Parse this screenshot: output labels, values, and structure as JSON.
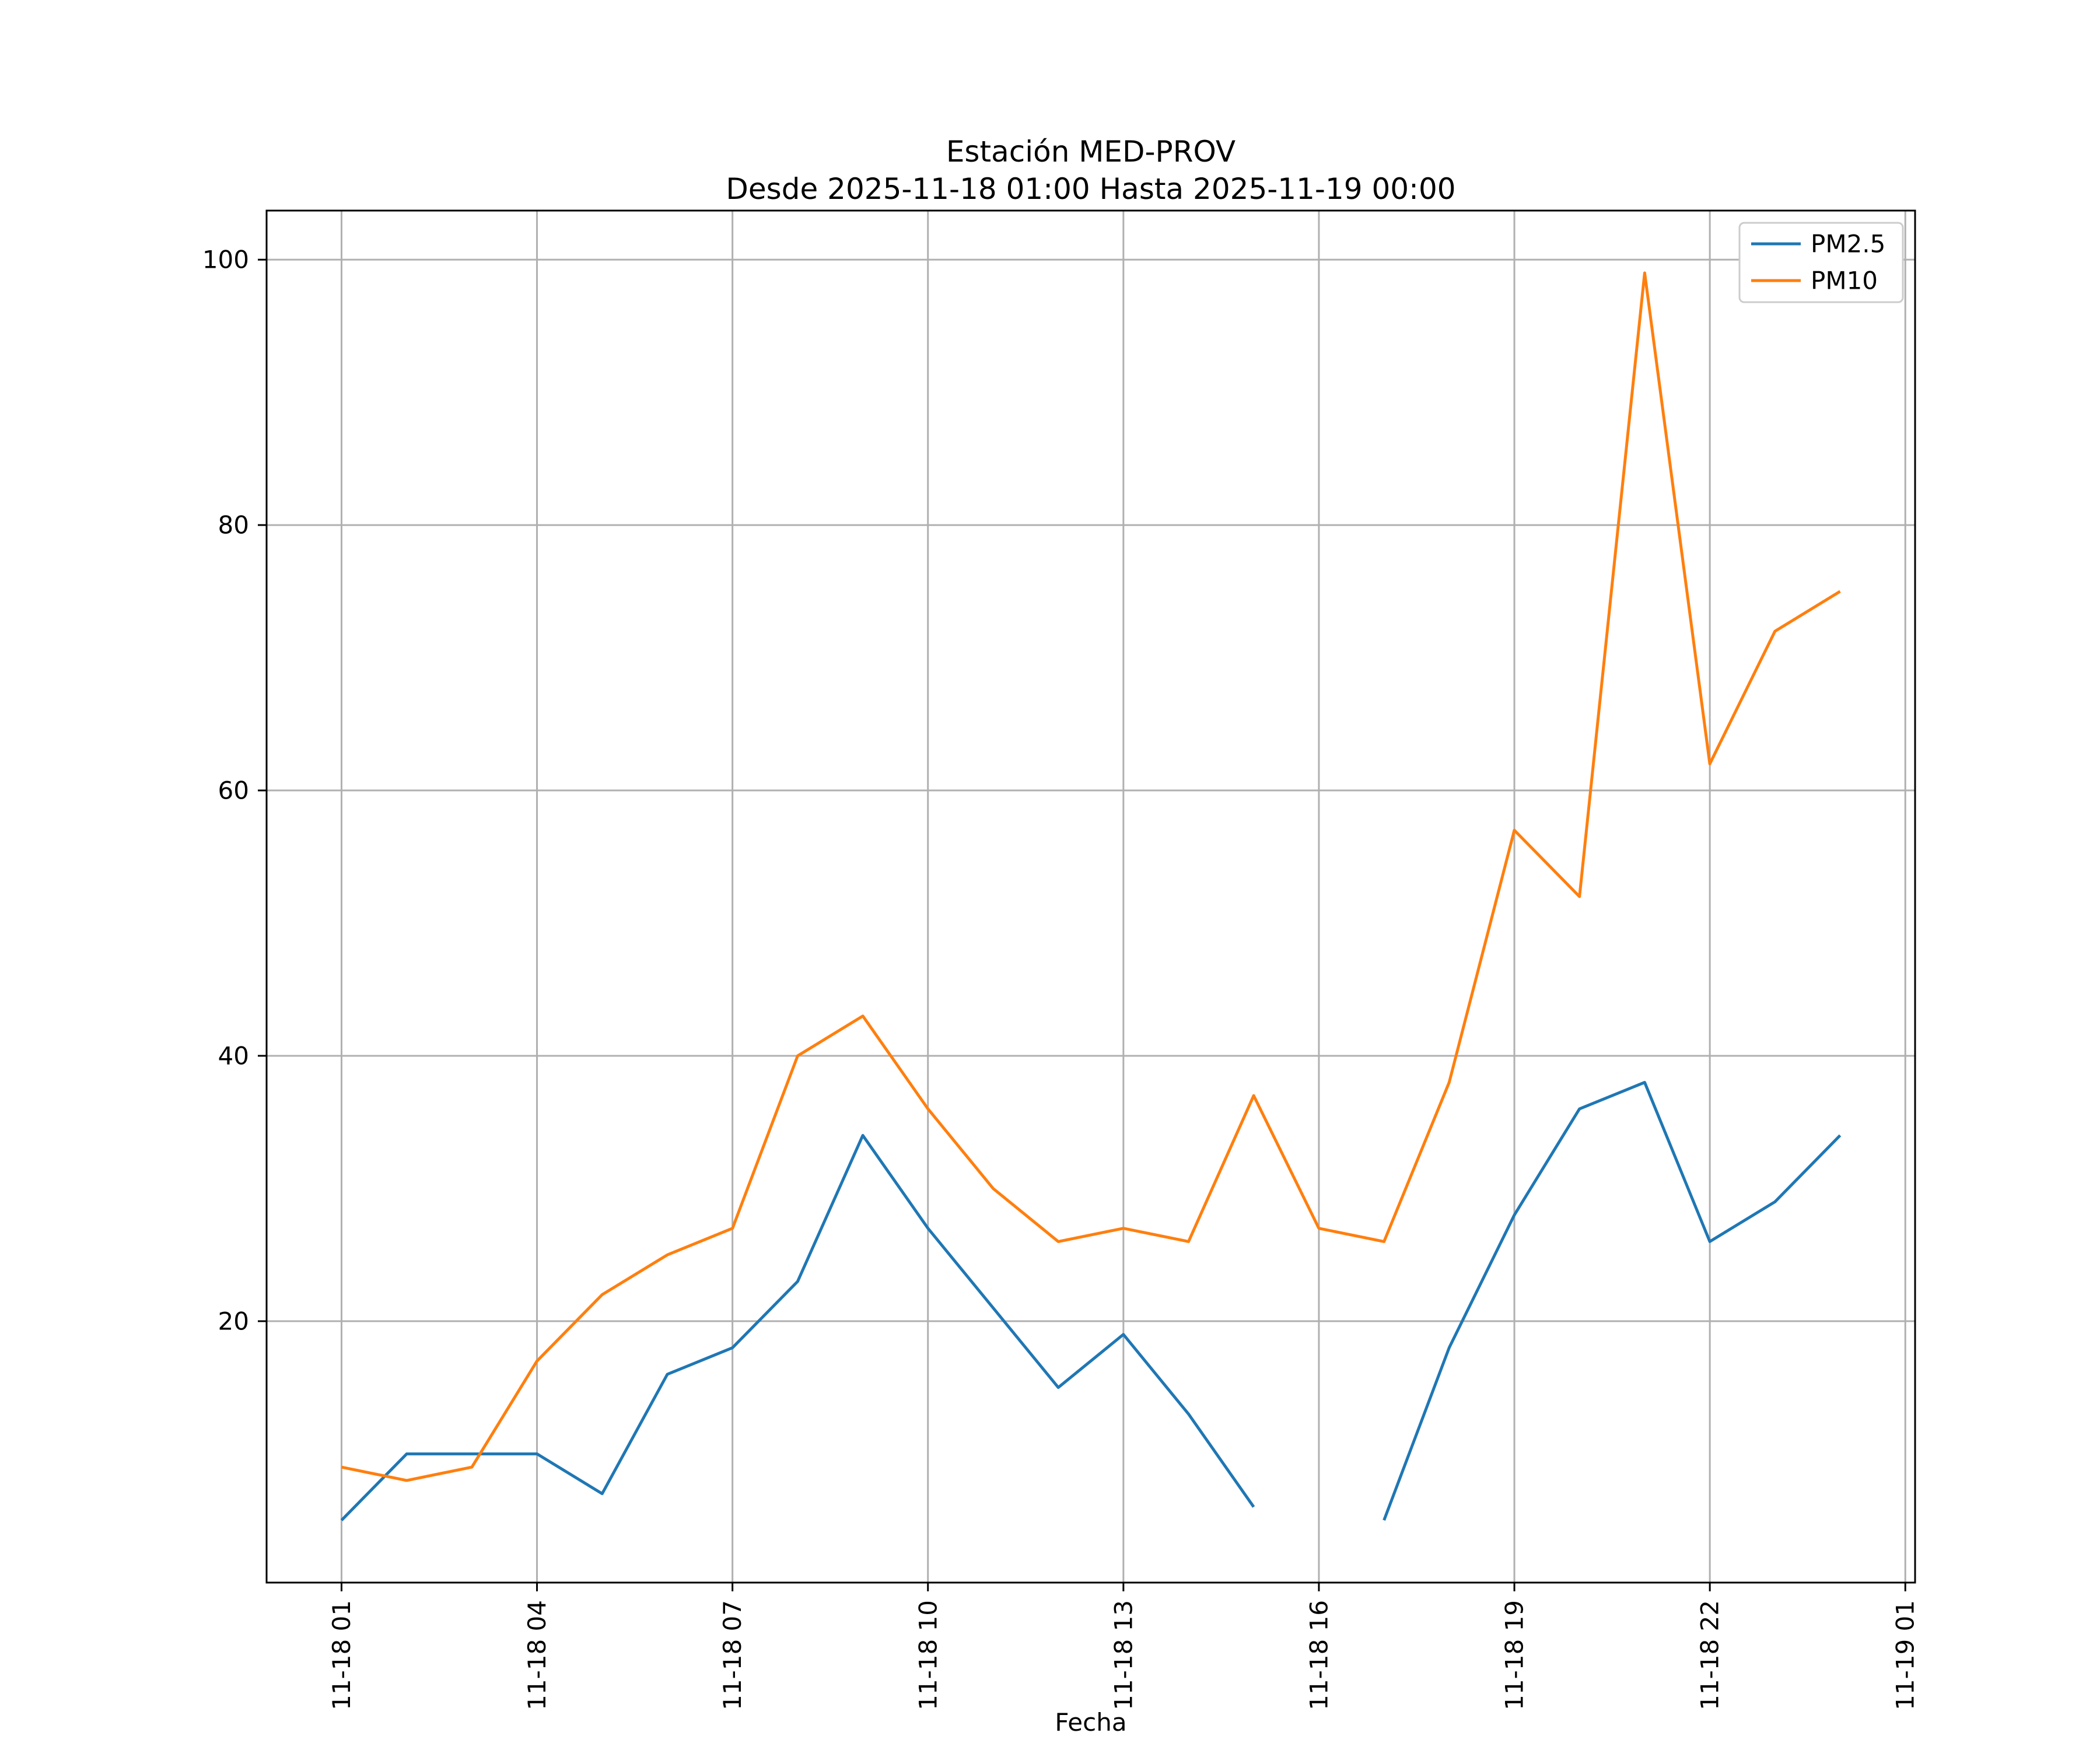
{
  "figure": {
    "title": "Estación MED-PROV",
    "subtitle": "Desde 2025-11-18 01:00 Hasta 2025-11-19 00:00",
    "xlabel": "Fecha"
  },
  "chart_data": {
    "type": "line",
    "title": "Estación MED-PROV",
    "subtitle": "Desde 2025-11-18 01:00 Hasta 2025-11-19 00:00",
    "xlabel": "Fecha",
    "ylabel": "",
    "grid": true,
    "legend_position": "upper right",
    "xlim": [
      -0.15,
      25.15
    ],
    "ylim": [
      0.3,
      103.7
    ],
    "x": [
      1,
      2,
      3,
      4,
      5,
      6,
      7,
      8,
      9,
      10,
      11,
      12,
      13,
      14,
      15,
      16,
      17,
      18,
      19,
      20,
      21,
      22,
      23,
      24
    ],
    "x_ticks": [
      {
        "hour": 1,
        "label": "11-18 01"
      },
      {
        "hour": 4,
        "label": "11-18 04"
      },
      {
        "hour": 7,
        "label": "11-18 07"
      },
      {
        "hour": 10,
        "label": "11-18 10"
      },
      {
        "hour": 13,
        "label": "11-18 13"
      },
      {
        "hour": 16,
        "label": "11-18 16"
      },
      {
        "hour": 19,
        "label": "11-18 19"
      },
      {
        "hour": 22,
        "label": "11-18 22"
      },
      {
        "hour": 25,
        "label": "11-19 01"
      }
    ],
    "y_ticks": [
      20,
      40,
      60,
      80,
      100
    ],
    "colors": {
      "grid": "#b0b0b0",
      "axes": "#000000",
      "legend_border": "#cccccc"
    },
    "series": [
      {
        "name": "PM2.5",
        "color": "#1f77b4",
        "values": [
          5,
          10,
          10,
          10,
          7,
          16,
          18,
          23,
          34,
          27,
          21,
          15,
          19,
          13,
          6,
          null,
          5,
          18,
          28,
          36,
          38,
          26,
          29,
          34
        ]
      },
      {
        "name": "PM10",
        "color": "#ff7f0e",
        "values": [
          9,
          8,
          9,
          17,
          22,
          25,
          27,
          40,
          43,
          36,
          30,
          26,
          27,
          26,
          37,
          27,
          26,
          38,
          57,
          52,
          99,
          62,
          72,
          75
        ]
      }
    ]
  }
}
